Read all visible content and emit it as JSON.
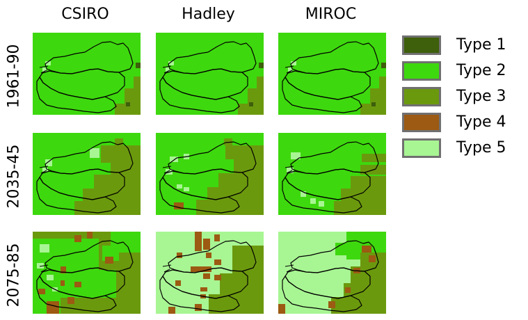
{
  "columns": [
    "CSIRO",
    "Hadley",
    "MIROC"
  ],
  "rows": [
    "1961-90",
    "2035-45",
    "2075-85"
  ],
  "legend": [
    {
      "label": "Type 1",
      "color": "#3e5f0b"
    },
    {
      "label": "Type 2",
      "color": "#3ed80e"
    },
    {
      "label": "Type 3",
      "color": "#6b990e"
    },
    {
      "label": "Type 4",
      "color": "#9c5a12"
    },
    {
      "label": "Type 5",
      "color": "#a8f593"
    }
  ]
}
